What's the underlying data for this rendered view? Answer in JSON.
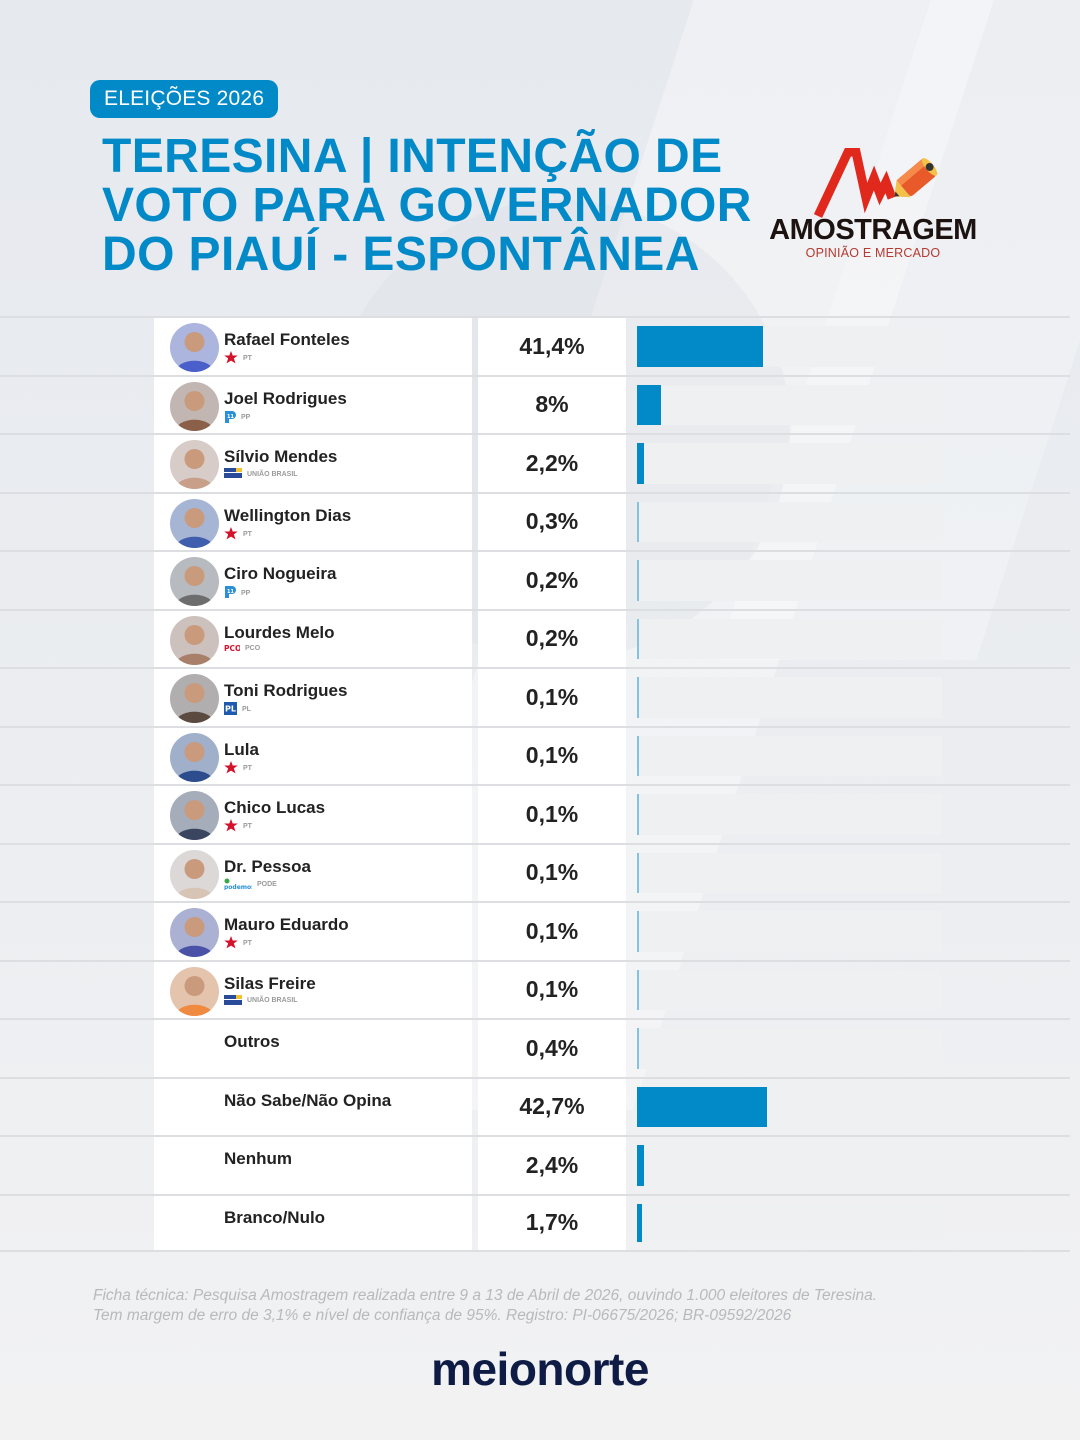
{
  "header": {
    "badge": "ELEIÇÕES 2026",
    "title_lines": [
      "TERESINA | INTENÇÃO DE",
      "VOTO PARA GOVERNADOR",
      "DO PIAUÍ - ESPONTÂNEA"
    ]
  },
  "logo": {
    "name": "AMOSTRAGEM",
    "tagline": "OPINIÃO E MERCADO"
  },
  "colors": {
    "accent": "#0289c7",
    "bar_track": "#eef0f2",
    "brand_dark": "#0e1c45",
    "pt_red": "#d4122b"
  },
  "rows": [
    {
      "name": "Rafael Fonteles",
      "party": "PT",
      "party_icon": "pt-star-icon",
      "pct_label": "41,4%",
      "value": 41.4,
      "avatar_color": "#4a5fc9"
    },
    {
      "name": "Joel Rodrigues",
      "party": "PP",
      "party_icon": "pp-logo-icon",
      "pct_label": "8%",
      "value": 8,
      "avatar_color": "#8a6048"
    },
    {
      "name": "Sílvio Mendes",
      "party": "UNIÃO BRASIL",
      "party_icon": "uniao-brasil-logo-icon",
      "pct_label": "2,2%",
      "value": 2.2,
      "avatar_color": "#c8a08a"
    },
    {
      "name": "Wellington Dias",
      "party": "PT",
      "party_icon": "pt-star-icon",
      "pct_label": "0,3%",
      "value": 0.3,
      "avatar_color": "#3f5fae"
    },
    {
      "name": "Ciro Nogueira",
      "party": "PP",
      "party_icon": "pp-logo-icon",
      "pct_label": "0,2%",
      "value": 0.2,
      "avatar_color": "#6d6d6d"
    },
    {
      "name": "Lourdes Melo",
      "party": "PCO",
      "party_icon": "pco-logo-icon",
      "pct_label": "0,2%",
      "value": 0.2,
      "avatar_color": "#a8806a"
    },
    {
      "name": "Toni Rodrigues",
      "party": "PL",
      "party_icon": "pl-logo-icon",
      "pct_label": "0,1%",
      "value": 0.1,
      "avatar_color": "#5a4a40"
    },
    {
      "name": "Lula",
      "party": "PT",
      "party_icon": "pt-star-icon",
      "pct_label": "0,1%",
      "value": 0.1,
      "avatar_color": "#2c4c8e"
    },
    {
      "name": "Chico Lucas",
      "party": "PT",
      "party_icon": "pt-star-icon",
      "pct_label": "0,1%",
      "value": 0.1,
      "avatar_color": "#3a4560"
    },
    {
      "name": "Dr. Pessoa",
      "party": "PODE",
      "party_icon": "podemos-logo-icon",
      "pct_label": "0,1%",
      "value": 0.1,
      "avatar_color": "#d8c4b4"
    },
    {
      "name": "Mauro Eduardo",
      "party": "PT",
      "party_icon": "pt-star-icon",
      "pct_label": "0,1%",
      "value": 0.1,
      "avatar_color": "#4a52a8"
    },
    {
      "name": "Silas Freire",
      "party": "UNIÃO BRASIL",
      "party_icon": "uniao-brasil-logo-icon",
      "pct_label": "0,1%",
      "value": 0.1,
      "avatar_color": "#f08a40"
    },
    {
      "name": "Outros",
      "party": "",
      "party_icon": "",
      "pct_label": "0,4%",
      "value": 0.4,
      "avatar_color": ""
    },
    {
      "name": "Não Sabe/Não Opina",
      "party": "",
      "party_icon": "",
      "pct_label": "42,7%",
      "value": 42.7,
      "avatar_color": ""
    },
    {
      "name": "Nenhum",
      "party": "",
      "party_icon": "",
      "pct_label": "2,4%",
      "value": 2.4,
      "avatar_color": ""
    },
    {
      "name": "Branco/Nulo",
      "party": "",
      "party_icon": "",
      "pct_label": "1,7%",
      "value": 1.7,
      "avatar_color": ""
    }
  ],
  "footnote": {
    "line1": "Ficha técnica: Pesquisa Amostragem realizada entre 9 a 13 de Abril de 2026, ouvindo 1.000 eleitores de Teresina.",
    "line2": "Tem margem de erro de 3,1% e nível de confiança de 95%. Registro: PI-06675/2026; BR-09592/2026"
  },
  "brand": "meionorte",
  "chart_data": {
    "type": "bar",
    "orientation": "horizontal",
    "title": "TERESINA | INTENÇÃO DE VOTO PARA GOVERNADOR DO PIAUÍ - ESPONTÂNEA",
    "subtitle": "ELEIÇÕES 2026",
    "categories": [
      "Rafael Fonteles",
      "Joel Rodrigues",
      "Sílvio Mendes",
      "Wellington Dias",
      "Ciro Nogueira",
      "Lourdes Melo",
      "Toni Rodrigues",
      "Lula",
      "Chico Lucas",
      "Dr. Pessoa",
      "Mauro Eduardo",
      "Silas Freire",
      "Outros",
      "Não Sabe/Não Opina",
      "Nenhum",
      "Branco/Nulo"
    ],
    "parties": [
      "PT",
      "PP",
      "UNIÃO BRASIL",
      "PT",
      "PP",
      "PCO",
      "PL",
      "PT",
      "PT",
      "PODE",
      "PT",
      "UNIÃO BRASIL",
      "",
      "",
      "",
      ""
    ],
    "values": [
      41.4,
      8,
      2.2,
      0.3,
      0.2,
      0.2,
      0.1,
      0.1,
      0.1,
      0.1,
      0.1,
      0.1,
      0.4,
      42.7,
      2.4,
      1.7
    ],
    "value_labels": [
      "41,4%",
      "8%",
      "2,2%",
      "0,3%",
      "0,2%",
      "0,2%",
      "0,1%",
      "0,1%",
      "0,1%",
      "0,1%",
      "0,1%",
      "0,1%",
      "0,4%",
      "42,7%",
      "2,4%",
      "1,7%"
    ],
    "xlabel": "",
    "ylabel": "",
    "xlim": [
      0,
      100
    ],
    "grid": false,
    "legend": "none",
    "unit": "%"
  }
}
